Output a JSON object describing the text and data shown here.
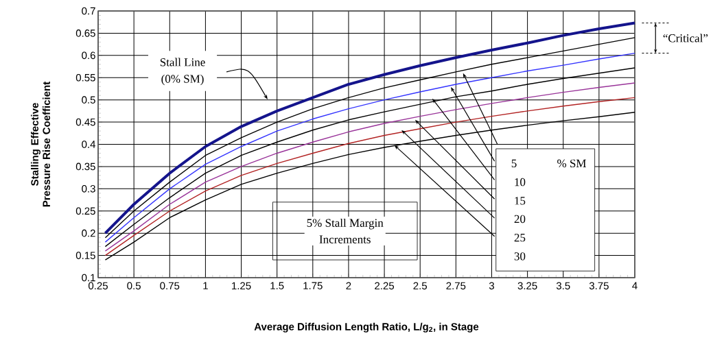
{
  "chart_data": {
    "type": "line",
    "xlabel": "Average Diffusion Length Ratio, L/g$_{2}$, in Stage",
    "ylabel": "Stalling Effective Pressure Rise Coefficient",
    "x": [
      0.3,
      0.5,
      0.75,
      1,
      1.25,
      1.5,
      1.75,
      2,
      2.25,
      2.5,
      2.75,
      3,
      3.25,
      3.5,
      3.75,
      4
    ],
    "series": [
      {
        "color": "#14148c",
        "values": [
          0.2,
          0.265,
          0.335,
          0.395,
          0.44,
          0.475,
          0.505,
          0.535,
          0.557,
          0.577,
          0.595,
          0.612,
          0.628,
          0.645,
          0.66,
          0.673
        ]
      },
      {
        "color": "#000000",
        "values": [
          0.19,
          0.25,
          0.315,
          0.375,
          0.415,
          0.45,
          0.48,
          0.505,
          0.527,
          0.545,
          0.563,
          0.58,
          0.595,
          0.61,
          0.625,
          0.64
        ]
      },
      {
        "color": "#3333ff",
        "values": [
          0.18,
          0.235,
          0.3,
          0.355,
          0.395,
          0.43,
          0.457,
          0.48,
          0.5,
          0.518,
          0.535,
          0.55,
          0.565,
          0.578,
          0.592,
          0.605
        ]
      },
      {
        "color": "#000000",
        "values": [
          0.17,
          0.22,
          0.28,
          0.335,
          0.375,
          0.405,
          0.432,
          0.455,
          0.473,
          0.49,
          0.507,
          0.52,
          0.535,
          0.548,
          0.56,
          0.572
        ]
      },
      {
        "color": "#993399",
        "values": [
          0.16,
          0.205,
          0.265,
          0.315,
          0.35,
          0.38,
          0.405,
          0.428,
          0.447,
          0.463,
          0.478,
          0.492,
          0.505,
          0.517,
          0.528,
          0.538
        ]
      },
      {
        "color": "#b22222",
        "values": [
          0.15,
          0.195,
          0.25,
          0.295,
          0.33,
          0.357,
          0.38,
          0.402,
          0.42,
          0.435,
          0.45,
          0.463,
          0.475,
          0.486,
          0.496,
          0.505
        ]
      },
      {
        "color": "#000000",
        "values": [
          0.14,
          0.18,
          0.235,
          0.275,
          0.31,
          0.335,
          0.357,
          0.377,
          0.393,
          0.407,
          0.42,
          0.432,
          0.443,
          0.453,
          0.462,
          0.472
        ]
      }
    ],
    "xlim": [
      0.25,
      4
    ],
    "ylim": [
      0.1,
      0.7
    ],
    "xticks": [
      0.25,
      0.5,
      0.75,
      1,
      1.25,
      1.5,
      1.75,
      2,
      2.25,
      2.5,
      2.75,
      3,
      3.25,
      3.5,
      3.75,
      4
    ],
    "yticks": [
      0.1,
      0.15,
      0.2,
      0.25,
      0.3,
      0.35,
      0.4,
      0.45,
      0.5,
      0.55,
      0.6,
      0.65,
      0.7
    ],
    "grid": true,
    "annotations": [
      "Stall Line",
      "(0% SM)",
      "5% Stall Margin",
      "Increments",
      "5",
      "% SM",
      "10",
      "15",
      "20",
      "25",
      "30",
      "“Critical”"
    ]
  }
}
